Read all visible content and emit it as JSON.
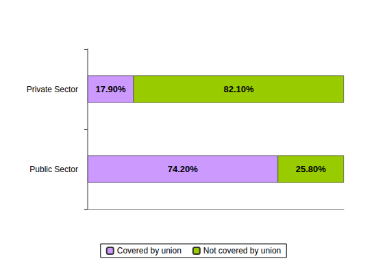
{
  "chart_data": {
    "type": "bar",
    "orientation": "horizontal",
    "stacked": true,
    "categories": [
      "Private Sector",
      "Public Sector"
    ],
    "series": [
      {
        "name": "Covered by union",
        "color": "#cc99ff",
        "values": [
          17.9,
          74.2
        ],
        "value_labels": [
          "17.90%",
          "74.20%"
        ]
      },
      {
        "name": "Not covered by union",
        "color": "#99cc00",
        "values": [
          82.1,
          25.8
        ],
        "value_labels": [
          "82.10%",
          "25.80%"
        ]
      }
    ],
    "xlim": [
      0,
      100
    ],
    "xticks": [],
    "data_labels": true,
    "tick_labels": "y",
    "legend": "bottom",
    "grid": false
  }
}
